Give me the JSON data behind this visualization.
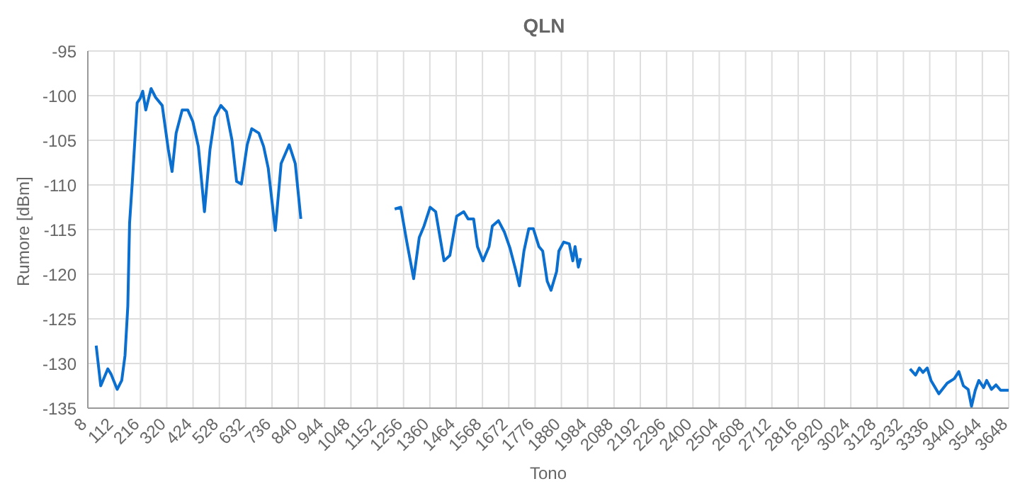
{
  "chart_data": {
    "type": "line",
    "title": "QLN",
    "xlabel": "Tono",
    "ylabel": "Rumore [dBm]",
    "x": [
      41,
      59,
      87,
      100,
      124,
      142,
      155,
      166,
      173,
      184,
      203,
      215,
      225,
      237,
      258,
      276,
      302,
      326,
      341,
      357,
      381,
      403,
      423,
      445,
      469,
      491,
      510,
      534,
      556,
      578,
      596,
      615,
      638,
      656,
      684,
      703,
      721,
      749,
      772,
      804,
      828,
      850,
      1000,
      1221,
      1245,
      1269,
      1296,
      1318,
      1337,
      1361,
      1383,
      1416,
      1439,
      1466,
      1494,
      1511,
      1533,
      1548,
      1570,
      1594,
      1607,
      1631,
      1655,
      1677,
      1699,
      1714,
      1732,
      1751,
      1769,
      1791,
      1806,
      1824,
      1839,
      1861,
      1870,
      1889,
      1911,
      1925,
      1934,
      1947,
      1956,
      2500,
      3258,
      3280,
      3295,
      3309,
      3326,
      3341,
      3372,
      3405,
      3433,
      3451,
      3469,
      3488,
      3501,
      3516,
      3530,
      3549,
      3561,
      3580,
      3598,
      3616,
      3648
    ],
    "series": [
      {
        "color": "#0a6fcf",
        "values": [
          -128.0,
          -132.5,
          -130.6,
          -131.2,
          -132.9,
          -131.9,
          -129.1,
          -123.6,
          -114.3,
          -109.6,
          -100.8,
          -100.3,
          -99.5,
          -101.6,
          -99.2,
          -100.2,
          -101.1,
          -106.0,
          -108.5,
          -104.2,
          -101.6,
          -101.6,
          -102.9,
          -105.7,
          -113.0,
          -106.0,
          -102.4,
          -101.1,
          -101.8,
          -105.0,
          -109.6,
          -109.9,
          -105.5,
          -103.7,
          -104.2,
          -105.7,
          -108.1,
          -115.1,
          -107.6,
          -105.5,
          -107.6,
          -113.8,
          null,
          -112.7,
          -112.5,
          -116.4,
          -120.5,
          -115.9,
          -114.6,
          -112.5,
          -113.0,
          -118.5,
          -117.9,
          -113.5,
          -113.0,
          -113.8,
          -113.8,
          -116.9,
          -118.5,
          -116.9,
          -114.6,
          -114.0,
          -115.3,
          -117.1,
          -119.5,
          -121.3,
          -117.4,
          -114.9,
          -114.9,
          -116.9,
          -117.4,
          -120.8,
          -121.8,
          -119.7,
          -117.4,
          -116.4,
          -116.6,
          -118.5,
          -116.9,
          -119.2,
          -118.2,
          null,
          -130.6,
          -131.3,
          -130.5,
          -131.0,
          -130.5,
          -131.9,
          -133.4,
          -132.2,
          -131.7,
          -130.9,
          -132.5,
          -132.9,
          -134.8,
          -133.0,
          -131.9,
          -132.7,
          -131.9,
          -132.9,
          -132.4,
          -133.0,
          -133.0
        ]
      }
    ],
    "xlim": [
      8,
      3648
    ],
    "xticks": [
      8,
      112,
      216,
      320,
      424,
      528,
      632,
      736,
      840,
      944,
      1048,
      1152,
      1256,
      1360,
      1464,
      1568,
      1672,
      1776,
      1880,
      1984,
      2088,
      2192,
      2296,
      2400,
      2504,
      2608,
      2712,
      2816,
      2920,
      3024,
      3128,
      3232,
      3336,
      3440,
      3544,
      3648
    ],
    "ylim": [
      -135,
      -95
    ],
    "yticks": [
      -135,
      -130,
      -125,
      -120,
      -115,
      -110,
      -105,
      -100,
      -95
    ],
    "grid": true,
    "marker": "none",
    "line_style": "solid",
    "legend": false
  }
}
